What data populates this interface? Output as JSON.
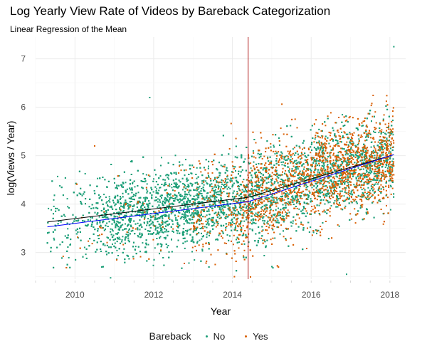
{
  "title": "Log Yearly View Rate of Videos by Bareback Categorization",
  "subtitle": "Linear Regression of the Mean",
  "colors": {
    "no": "#1b9e77",
    "yes": "#d95f02",
    "trend_overall": "#000000",
    "trend_fit": "#0000ff",
    "vline": "#b22222",
    "grid_major": "#ebebeb",
    "grid_minor": "#f5f5f5"
  },
  "chart_data": {
    "type": "scatter",
    "title": "Log Yearly View Rate of Videos by Bareback Categorization",
    "subtitle": "Linear Regression of the Mean",
    "xlabel": "Year",
    "ylabel": "log(Views / Year)",
    "xlim": [
      2009.0,
      2018.4
    ],
    "ylim": [
      2.45,
      7.45
    ],
    "x_ticks": [
      2010,
      2012,
      2014,
      2016,
      2018
    ],
    "y_ticks": [
      3,
      4,
      5,
      6,
      7
    ],
    "grid": true,
    "legend": {
      "title": "Bareback",
      "position": "bottom",
      "entries": [
        {
          "label": "No",
          "color": "#1b9e77"
        },
        {
          "label": "Yes",
          "color": "#d95f02"
        }
      ]
    },
    "vertical_line": {
      "x": 2014.4,
      "color": "#b22222"
    },
    "trend_lines": [
      {
        "color": "#000000",
        "points": [
          [
            2009.3,
            3.63
          ],
          [
            2014.4,
            4.14
          ],
          [
            2018.1,
            5.02
          ]
        ]
      },
      {
        "color": "#0000ff",
        "points": [
          [
            2009.3,
            3.53
          ],
          [
            2014.4,
            4.05
          ],
          [
            2018.1,
            5.02
          ]
        ]
      }
    ],
    "series": [
      {
        "name": "No",
        "color": "#1b9e77",
        "description_stats": {
          "x_range": [
            2009.3,
            2018.1
          ],
          "y_band_start": [
            3.0,
            4.6
          ],
          "y_band_end": [
            4.1,
            5.9
          ],
          "density": "very high, 2011-2016"
        }
      },
      {
        "name": "Yes",
        "color": "#d95f02",
        "description_stats": {
          "x_range": [
            2009.7,
            2018.1
          ],
          "y_band_start": [
            2.8,
            4.5
          ],
          "y_band_end": [
            4.0,
            6.6
          ],
          "density": "sparse before 2013, dense 2014-2018"
        }
      }
    ],
    "notable_points": [
      {
        "x": 2018.1,
        "y": 7.25,
        "series": "No"
      },
      {
        "x": 2016.9,
        "y": 2.55,
        "series": "No"
      },
      {
        "x": 2014.05,
        "y": 2.5,
        "series": "Yes"
      },
      {
        "x": 2011.9,
        "y": 6.2,
        "series": "No"
      },
      {
        "x": 2010.5,
        "y": 5.2,
        "series": "Yes"
      },
      {
        "x": 2009.4,
        "y": 3.88,
        "series": "No"
      }
    ]
  }
}
